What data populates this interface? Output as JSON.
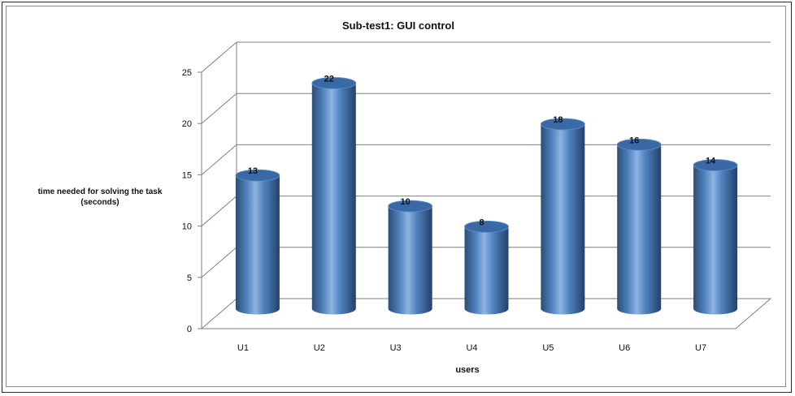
{
  "chart_data": {
    "type": "bar",
    "title": "Sub-test1: GUI control",
    "xlabel": "users",
    "ylabel_line1": "time needed for solving the task",
    "ylabel_line2": "(seconds)",
    "categories": [
      "U1",
      "U2",
      "U3",
      "U4",
      "U5",
      "U6",
      "U7"
    ],
    "values": [
      13,
      22,
      10,
      8,
      18,
      16,
      14
    ],
    "ylim": [
      0,
      25
    ],
    "yticks": [
      0,
      5,
      10,
      15,
      20,
      25
    ],
    "grid": true,
    "bar_style": "3d-cylinder",
    "colors": {
      "bar": "#4f81bd",
      "bar_dark": "#2c4d75",
      "bar_light": "#8db3e2",
      "top": "#3a6aa6",
      "grid": "#7f7f7f"
    }
  }
}
